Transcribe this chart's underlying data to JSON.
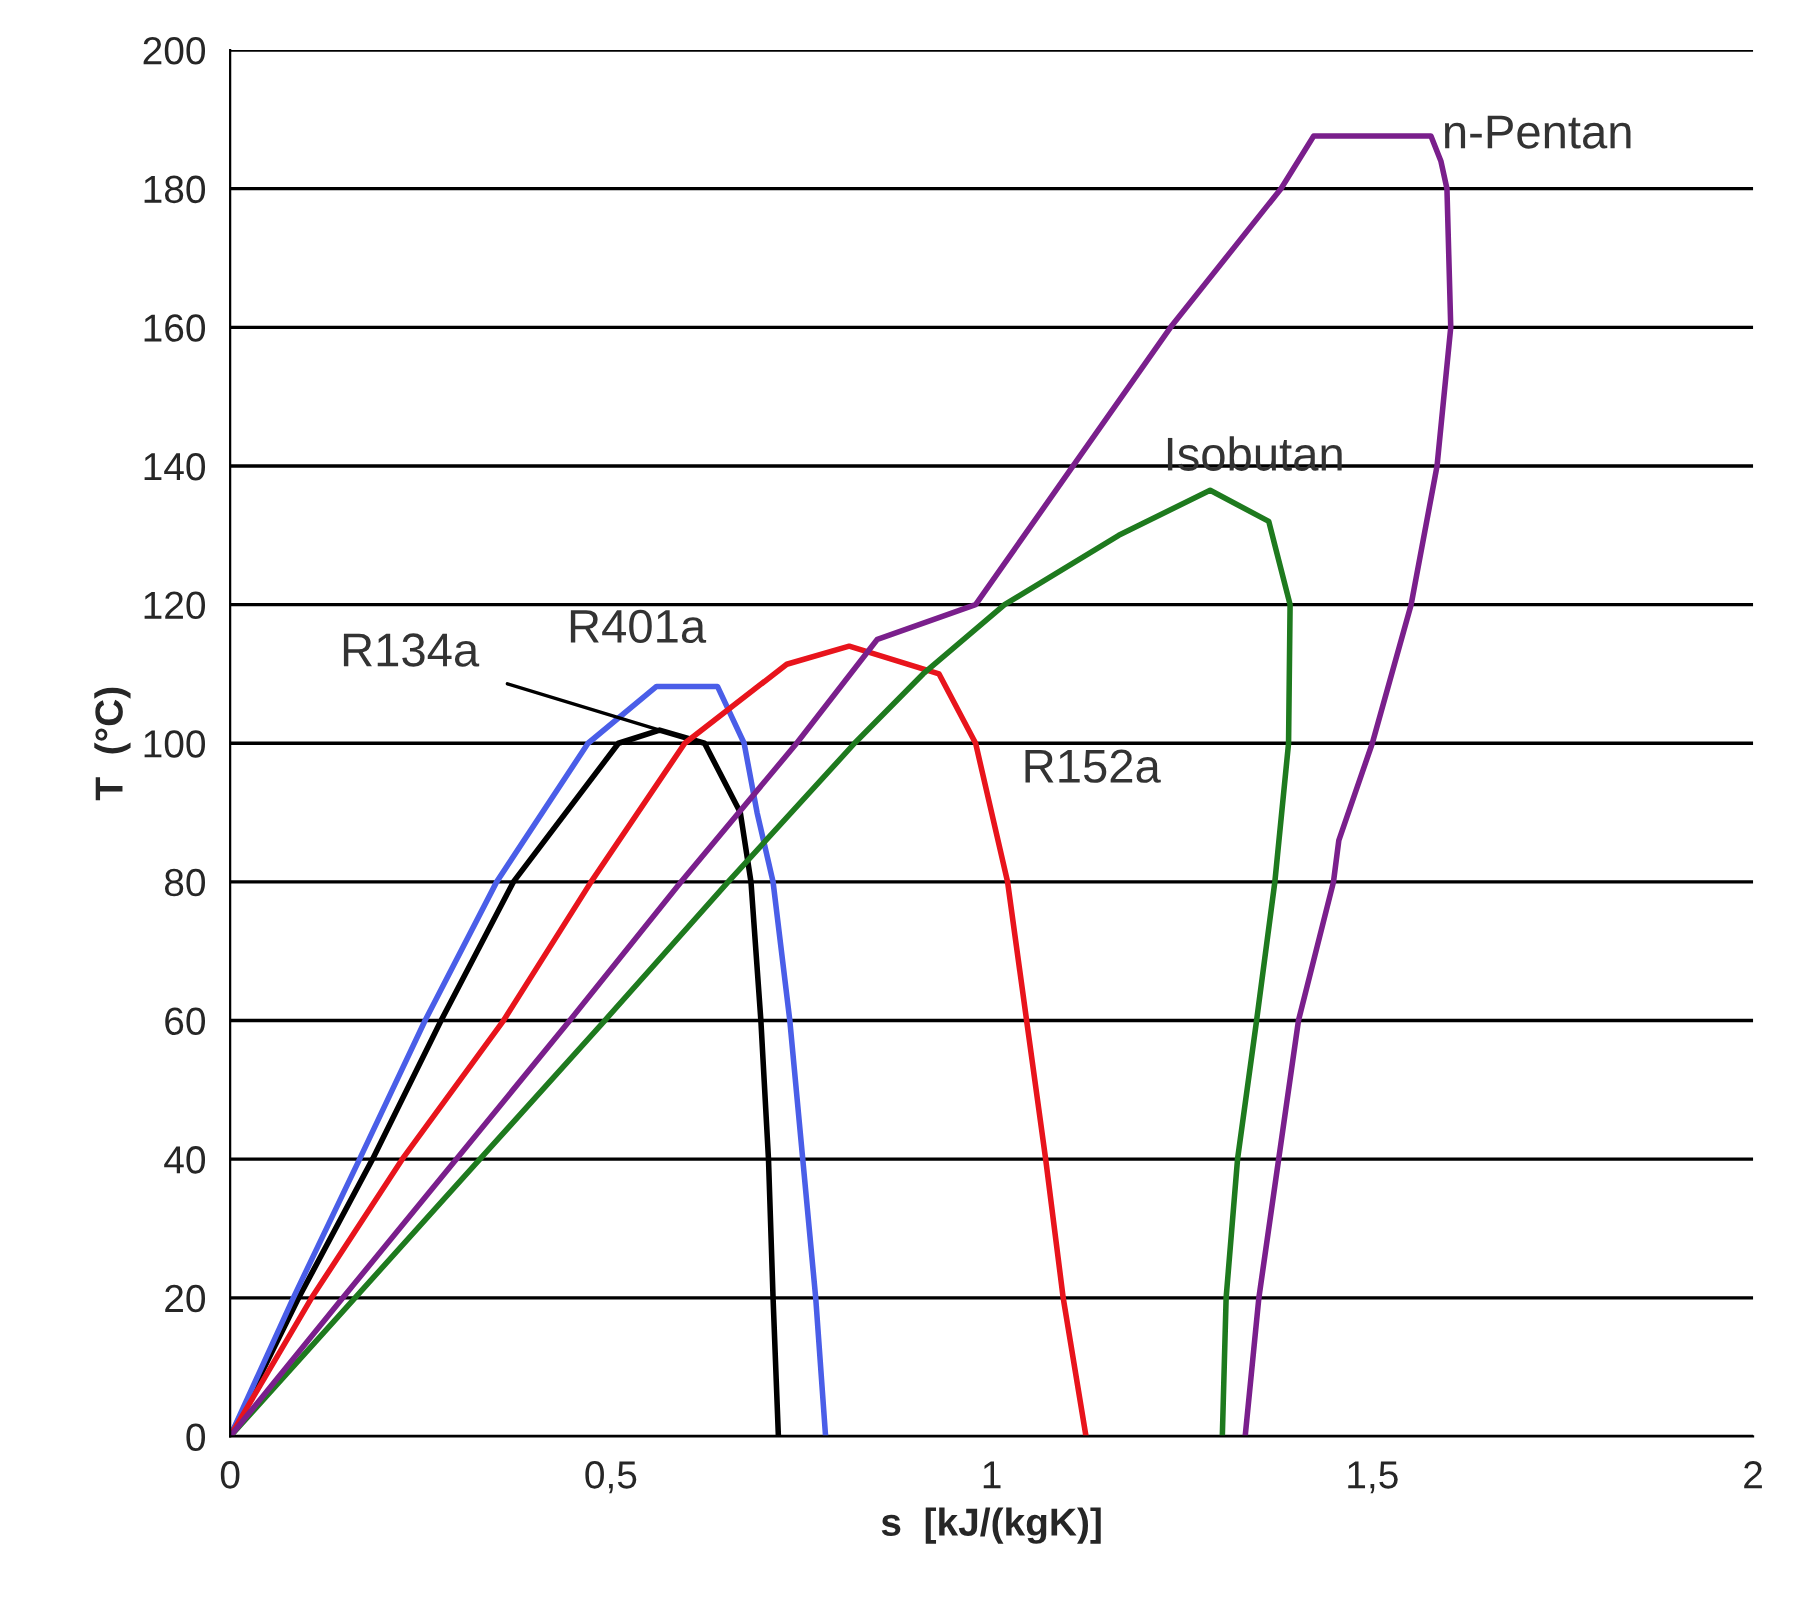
{
  "chart_data": {
    "type": "line",
    "xlabel": "s  [kJ/(kgK)]",
    "ylabel": "T  (°C)",
    "xlim": [
      0,
      2
    ],
    "xticks": [
      0,
      {
        "value": 0.5,
        "label": "0,5"
      },
      1,
      {
        "value": 1.5,
        "label": "1,5"
      },
      2
    ],
    "ylim": [
      0,
      200
    ],
    "yticks": [
      0,
      20,
      40,
      60,
      80,
      100,
      120,
      140,
      160,
      180,
      200
    ],
    "grid": "y",
    "legend": false,
    "marker": "none",
    "line_style": "solid",
    "series": [
      {
        "name": "R134a",
        "color": "#000000",
        "x": [
          0,
          0.09,
          0.187,
          0.277,
          0.372,
          0.51,
          0.564,
          0.623,
          0.67,
          0.684,
          0.697,
          0.707,
          0.713,
          0.72
        ],
        "values": [
          0,
          20,
          40,
          60,
          80,
          100,
          101.9,
          100,
          90,
          80,
          60,
          40,
          20,
          0
        ]
      },
      {
        "name": "R401a",
        "color": "#4a5ee8",
        "x": [
          0,
          0.083,
          0.17,
          0.256,
          0.35,
          0.47,
          0.56,
          0.64,
          0.675,
          0.692,
          0.713,
          0.735,
          0.752,
          0.769,
          0.782
        ],
        "values": [
          0,
          20,
          40,
          60,
          80,
          100,
          108.2,
          108.2,
          100,
          90,
          80,
          60,
          40,
          20,
          0
        ]
      },
      {
        "name": "R152a",
        "color": "#e8141c",
        "x": [
          0,
          0.107,
          0.226,
          0.359,
          0.474,
          0.597,
          0.731,
          0.813,
          0.931,
          0.979,
          1.021,
          1.046,
          1.071,
          1.094,
          1.124
        ],
        "values": [
          0,
          20,
          40,
          60,
          80,
          100,
          111.4,
          114,
          110,
          100,
          80,
          60,
          40,
          20,
          0
        ]
      },
      {
        "name": "Isobutan",
        "color": "#1e7a1e",
        "x": [
          0,
          0.164,
          0.328,
          0.492,
          0.654,
          0.82,
          0.91,
          1.017,
          1.167,
          1.287,
          1.364,
          1.392,
          1.39,
          1.372,
          1.348,
          1.323,
          1.308,
          1.303
        ],
        "values": [
          0,
          20,
          40,
          60,
          80,
          100,
          110,
          120,
          130,
          136.5,
          132,
          120,
          100,
          80,
          60,
          40,
          20,
          0
        ]
      },
      {
        "name": "n-Pentan",
        "color": "#7a1f8c",
        "x": [
          0,
          0.148,
          0.297,
          0.446,
          0.592,
          0.744,
          0.85,
          0.979,
          1.107,
          1.235,
          1.38,
          1.423,
          1.577,
          1.59,
          1.598,
          1.603,
          1.585,
          1.551,
          1.5,
          1.456,
          1.449,
          1.403,
          1.377,
          1.351,
          1.333
        ],
        "values": [
          0,
          20,
          40,
          60,
          80,
          100,
          115,
          120,
          140,
          160,
          180,
          187.6,
          187.6,
          184,
          180,
          160,
          140,
          120,
          100,
          86,
          80,
          60,
          40,
          20,
          0
        ]
      }
    ]
  }
}
